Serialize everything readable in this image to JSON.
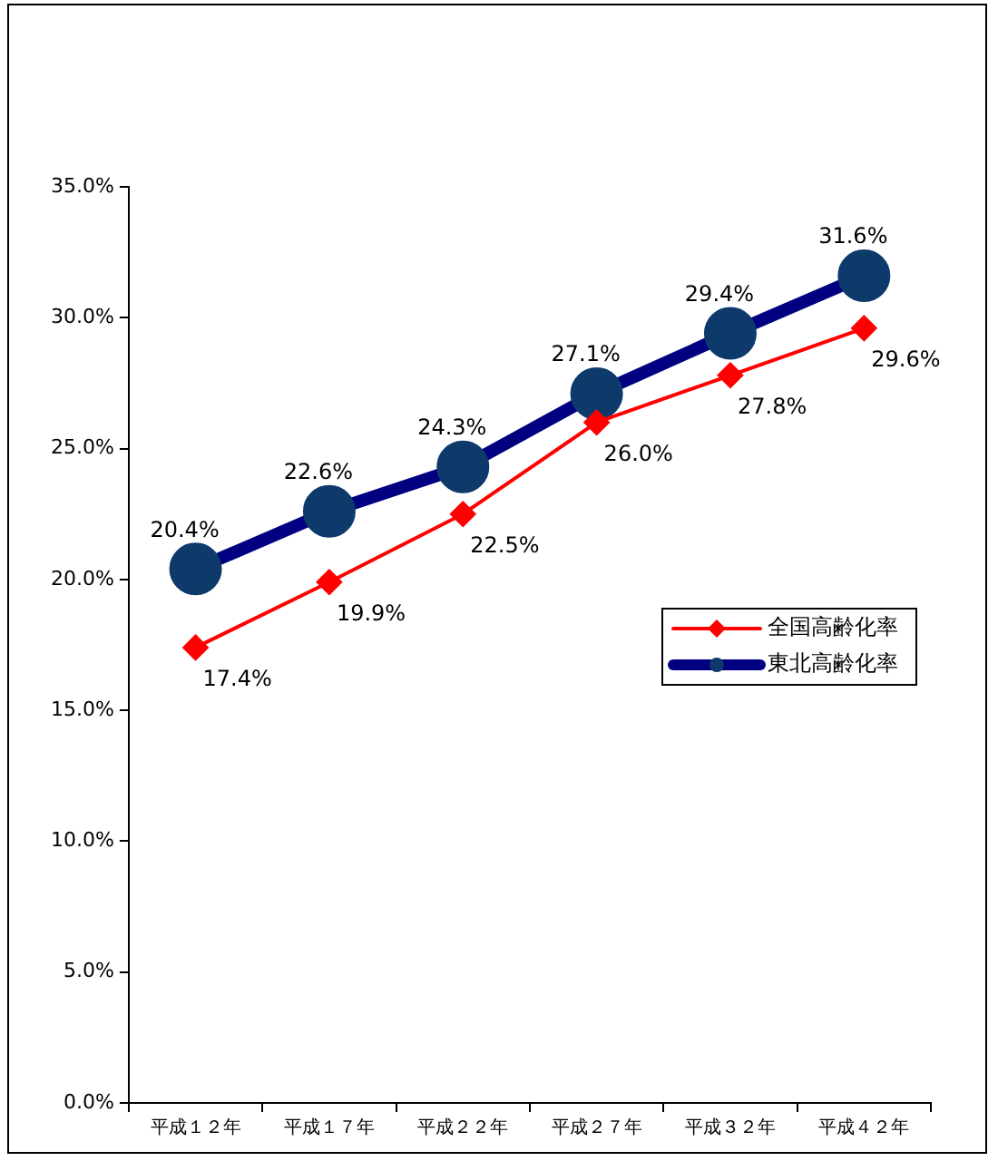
{
  "chart_data": {
    "type": "line",
    "categories": [
      "平成１２年",
      "平成１７年",
      "平成２２年",
      "平成２７年",
      "平成３２年",
      "平成４２年"
    ],
    "series": [
      {
        "name": "全国高齢化率",
        "color": "#ff0000",
        "values": [
          17.4,
          19.9,
          22.5,
          26.0,
          27.8,
          29.6
        ],
        "marker": "diamond",
        "value_labels": [
          "17.4%",
          "19.9%",
          "22.5%",
          "26.0%",
          "27.8%",
          "29.6%"
        ]
      },
      {
        "name": "東北高齢化率",
        "color": "#000080",
        "values": [
          20.4,
          22.6,
          24.3,
          27.1,
          29.4,
          31.6
        ],
        "marker": "circle",
        "value_labels": [
          "20.4%",
          "22.6%",
          "24.3%",
          "27.1%",
          "29.4%",
          "31.6%"
        ]
      }
    ],
    "ylim": [
      0,
      35
    ],
    "yticks": [
      {
        "value": 0,
        "label": "0.0%"
      },
      {
        "value": 5,
        "label": "5.0%"
      },
      {
        "value": 10,
        "label": "10.0%"
      },
      {
        "value": 15,
        "label": "15.0%"
      },
      {
        "value": 20,
        "label": "20.0%"
      },
      {
        "value": 25,
        "label": "25.0%"
      },
      {
        "value": 30,
        "label": "30.0%"
      },
      {
        "value": 35,
        "label": "35.0%"
      }
    ],
    "grid": false,
    "legend": "right"
  }
}
